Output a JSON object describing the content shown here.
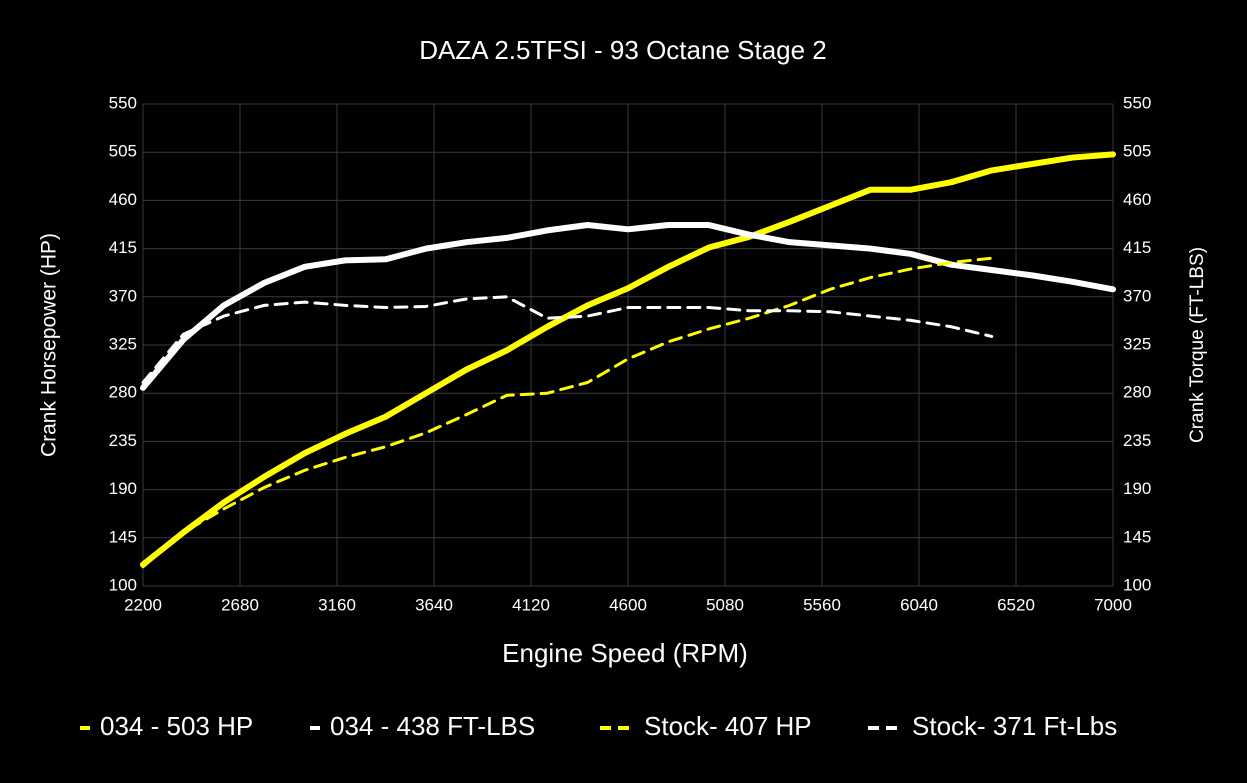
{
  "chart_data": {
    "type": "line",
    "title": "DAZA 2.5TFSI - 93 Octane Stage 2",
    "x_label": "Engine Speed (RPM)",
    "y_label": "Crank Horsepower (HP)",
    "y2_label": "Crank Torque (FT-LBS)",
    "x": [
      2200,
      2400,
      2600,
      2800,
      3000,
      3200,
      3400,
      3600,
      3800,
      4000,
      4200,
      4400,
      4600,
      4800,
      5000,
      5200,
      5400,
      5600,
      5800,
      6000,
      6200,
      6400,
      6600,
      6800,
      7000
    ],
    "xlim": [
      2200,
      7000
    ],
    "xticks": [
      2200,
      2680,
      3160,
      3640,
      4120,
      4600,
      5080,
      5560,
      6040,
      6520,
      7000
    ],
    "ylim": [
      100,
      550
    ],
    "yticks": [
      100,
      145,
      190,
      235,
      280,
      325,
      370,
      415,
      460,
      505,
      550
    ],
    "y2lim": [
      100,
      550
    ],
    "y2ticks": [
      100,
      145,
      190,
      235,
      280,
      325,
      370,
      415,
      460,
      505,
      550
    ],
    "grid": true,
    "legend": "bottom",
    "series": [
      {
        "name": "034 - 503 HP",
        "color": "#ffff00",
        "line_style": "solid",
        "values": [
          120,
          150,
          178,
          202,
          224,
          242,
          258,
          280,
          302,
          320,
          342,
          362,
          378,
          398,
          416,
          426,
          440,
          455,
          470,
          470,
          477,
          488,
          494,
          500,
          503
        ]
      },
      {
        "name": "034 - 438 FT-LBS",
        "color": "#ffffff",
        "line_style": "solid",
        "axis": "y2",
        "values": [
          285,
          330,
          362,
          383,
          398,
          404,
          405,
          415,
          421,
          425,
          432,
          437,
          433,
          437,
          437,
          428,
          421,
          418,
          415,
          410,
          400,
          395,
          390,
          384,
          377
        ]
      },
      {
        "name": "Stock- 407 HP",
        "color": "#ffff00",
        "line_style": "dashed",
        "values": [
          118,
          150,
          172,
          192,
          208,
          220,
          230,
          243,
          260,
          278,
          280,
          290,
          312,
          328,
          340,
          350,
          362,
          377,
          388,
          396,
          402,
          406,
          null,
          null,
          null
        ]
      },
      {
        "name": "Stock- 371 Ft-Lbs",
        "color": "#ffffff",
        "line_style": "dashed",
        "axis": "y2",
        "values": [
          290,
          335,
          352,
          362,
          365,
          362,
          360,
          361,
          368,
          370,
          350,
          352,
          360,
          360,
          360,
          357,
          357,
          356,
          352,
          348,
          342,
          333,
          null,
          null,
          null
        ]
      }
    ]
  }
}
